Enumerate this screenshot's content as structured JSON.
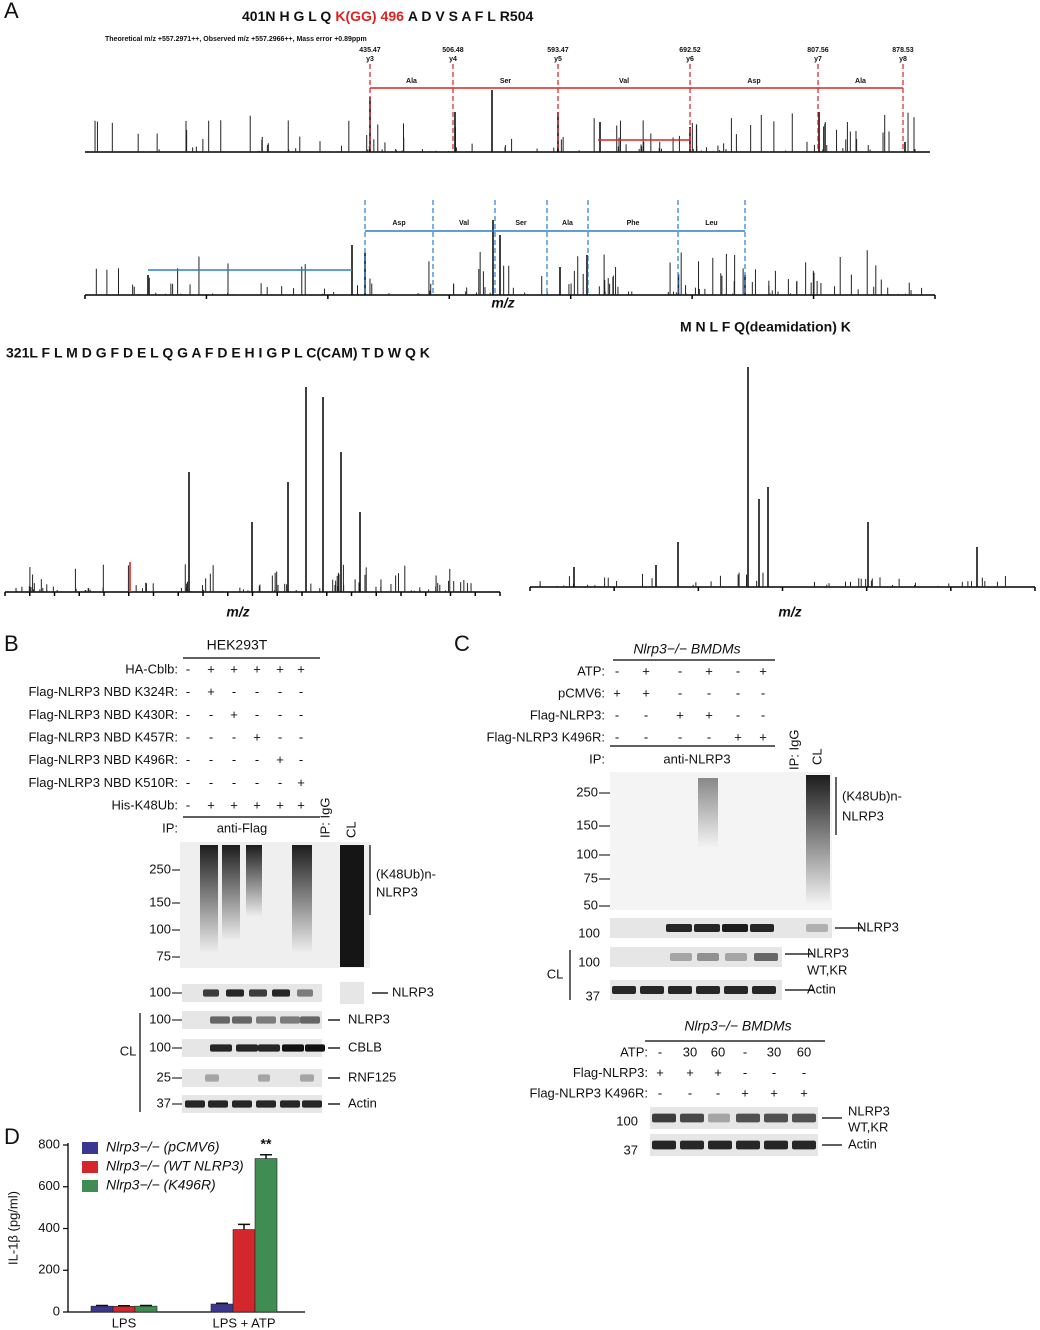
{
  "panel_a": {
    "label": "A",
    "peptide_1": {
      "start": "401N",
      "residues_1": "H G L Q",
      "mod": "K(GG)",
      "site": "496",
      "residues_2": "A D V S A F L",
      "end": "R504"
    },
    "note_1": "Theoretical m/z +557.2971++, Observed m/z +557.2966++, Mass error +0.89ppm",
    "y_ions": [
      {
        "mass": "435.47",
        "ion": "y3"
      },
      {
        "mass": "506.48",
        "ion": "y4"
      },
      {
        "mass": "593.47",
        "ion": "y5"
      },
      {
        "mass": "692.52",
        "ion": "y6"
      },
      {
        "mass": "807.56",
        "ion": "y7"
      },
      {
        "mass": "878.53",
        "ion": "y8"
      }
    ],
    "residue_gaps_1": [
      "Ala",
      "Ser",
      "Val",
      "Asp",
      "Ala"
    ],
    "residue_gaps_2": [
      "Asp",
      "Val",
      "Ser",
      "Ala",
      "Phe",
      "Leu"
    ],
    "axis_label": "m/z",
    "peptide_2": "321L F L M D G F D E L Q G A F D E H I G P L C(CAM) T D W Q K",
    "peptide_3": "M N L F Q(deamidation) K"
  },
  "panel_b": {
    "label": "B",
    "cell_line": "HEK293T",
    "rows": [
      {
        "label": "HA-Cblb:",
        "signs": [
          "-",
          "+",
          "+",
          "+",
          "+",
          "+"
        ]
      },
      {
        "label": "Flag-NLRP3 NBD K324R:",
        "signs": [
          "-",
          "+",
          "-",
          "-",
          "-",
          "-"
        ]
      },
      {
        "label": "Flag-NLRP3 NBD K430R:",
        "signs": [
          "-",
          "-",
          "+",
          "-",
          "-",
          "-"
        ]
      },
      {
        "label": "Flag-NLRP3 NBD K457R:",
        "signs": [
          "-",
          "-",
          "-",
          "+",
          "-",
          "-"
        ]
      },
      {
        "label": "Flag-NLRP3 NBD K496R:",
        "signs": [
          "-",
          "-",
          "-",
          "-",
          "+",
          "-"
        ]
      },
      {
        "label": "Flag-NLRP3 NBD K510R:",
        "signs": [
          "-",
          "-",
          "-",
          "-",
          "-",
          "+"
        ]
      },
      {
        "label": "His-K48Ub:",
        "signs": [
          "-",
          "+",
          "+",
          "+",
          "+",
          "+"
        ]
      }
    ],
    "ip": "IP:",
    "ip_target": "anti-Flag",
    "ip_igg": "IP: IgG",
    "cl": "CL",
    "main_markers": [
      "250",
      "150",
      "100",
      "75"
    ],
    "main_label_1": "(K48Ub)n-",
    "main_label_2": "NLRP3",
    "strips": [
      {
        "marker": "100",
        "label": "NLRP3"
      },
      {
        "marker": "100",
        "label": "NLRP3"
      },
      {
        "marker": "100",
        "label": "CBLB"
      },
      {
        "marker": "25",
        "label": "RNF125"
      },
      {
        "marker": "37",
        "label": "Actin"
      }
    ]
  },
  "panel_c": {
    "label": "C",
    "title": "Nlrp3−/− BMDMs",
    "rows": [
      {
        "label": "ATP:",
        "signs": [
          "-",
          "+",
          "-",
          "+",
          "-",
          "+"
        ]
      },
      {
        "label": "pCMV6:",
        "signs": [
          "+",
          "+",
          "-",
          "-",
          "-",
          "-"
        ]
      },
      {
        "label": "Flag-NLRP3:",
        "signs": [
          "-",
          "-",
          "+",
          "+",
          "-",
          "-"
        ]
      },
      {
        "label": "Flag-NLRP3 K496R:",
        "signs": [
          "-",
          "-",
          "-",
          "-",
          "+",
          "+"
        ]
      }
    ],
    "ip": "IP:",
    "ip_target": "anti-NLRP3",
    "ip_igg": "IP: IgG",
    "cl": "CL",
    "main_markers": [
      "250",
      "150",
      "100",
      "75",
      "50"
    ],
    "main_label_1": "(K48Ub)n-",
    "main_label_2": "NLRP3",
    "strips": [
      {
        "marker": "100",
        "label": "NLRP3"
      },
      {
        "marker": "100",
        "label": "NLRP3",
        "label_2": "WT,KR"
      },
      {
        "marker": "37",
        "label": "Actin"
      }
    ],
    "title_2": "Nlrp3−/− BMDMs",
    "rows_2": [
      {
        "label": "ATP:",
        "signs": [
          "-",
          "30",
          "60",
          "-",
          "30",
          "60"
        ]
      },
      {
        "label": "Flag-NLRP3:",
        "signs": [
          "+",
          "+",
          "+",
          "-",
          "-",
          "-"
        ]
      },
      {
        "label": "Flag-NLRP3 K496R:",
        "signs": [
          "-",
          "-",
          "-",
          "+",
          "+",
          "+"
        ]
      }
    ],
    "strips_2": [
      {
        "marker": "100",
        "label": "NLRP3",
        "label_2": "WT,KR"
      },
      {
        "marker": "37",
        "label": "Actin"
      }
    ]
  },
  "chart_data": {
    "type": "bar",
    "panel_label": "D",
    "y_label": "IL-1β (pg/ml)",
    "categories": [
      "LPS",
      "LPS + ATP"
    ],
    "series": [
      {
        "name": "Nlrp3−/− (pCMV6)",
        "color": "#3b3791",
        "values": [
          28,
          38
        ],
        "errors": [
          3,
          4
        ]
      },
      {
        "name": "Nlrp3−/− (WT NLRP3)",
        "color": "#d4272b",
        "values": [
          27,
          395
        ],
        "errors": [
          3,
          25
        ]
      },
      {
        "name": "Nlrp3−/− (K496R)",
        "color": "#3f8d52",
        "values": [
          28,
          735
        ],
        "errors": [
          3,
          18
        ]
      }
    ],
    "ylim": [
      0,
      800
    ],
    "yticks": [
      0,
      200,
      400,
      600,
      800
    ],
    "annotation": "**"
  }
}
